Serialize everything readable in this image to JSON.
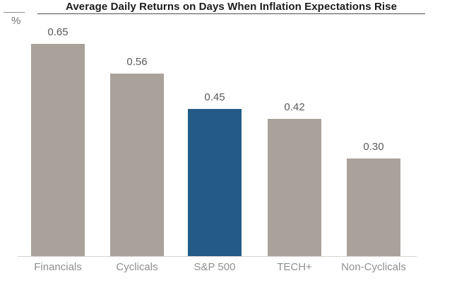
{
  "chart_data": {
    "type": "bar",
    "title": "Average Daily Returns on Days When Inflation Expectations Rise",
    "categories": [
      "Financials",
      "Cyclicals",
      "S&P 500",
      "TECH+",
      "Non-Cyclicals"
    ],
    "values": [
      0.65,
      0.56,
      0.45,
      0.42,
      0.3
    ],
    "value_labels": [
      "0.65",
      "0.56",
      "0.45",
      "0.42",
      "0.30"
    ],
    "xlabel": "",
    "ylabel": "%",
    "ylim": [
      0,
      0.75
    ],
    "grid": false,
    "legend": "none",
    "highlight_index": 2,
    "colors": {
      "bar_default": "#a9a29b",
      "bar_highlight": "#235b87",
      "baseline": "#d6d3ce",
      "title_text": "#1c1c1c",
      "value_text": "#595959",
      "category_text": "#8f8f8f"
    }
  }
}
